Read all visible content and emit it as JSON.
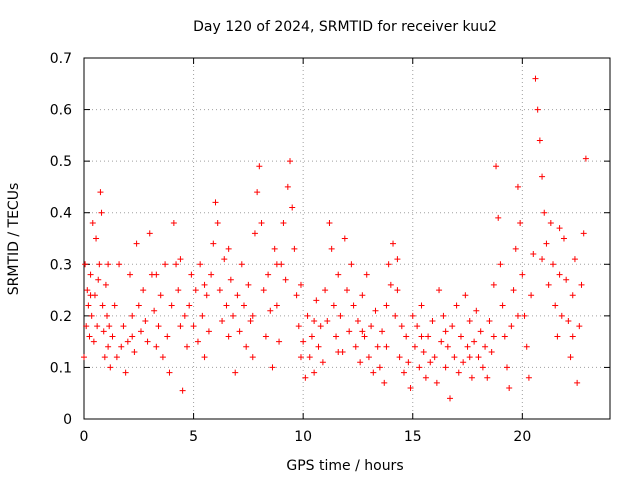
{
  "chart_data": {
    "type": "scatter",
    "title": "Day 120 of 2024, SRMTID for receiver kuu2",
    "xlabel": "GPS time / hours",
    "ylabel": "SRMTID / TECUs",
    "xlim": [
      0,
      24
    ],
    "ylim": [
      0,
      0.7
    ],
    "xticks": [
      0,
      5,
      10,
      15,
      20
    ],
    "xtick_labels": [
      "0",
      "5",
      "10",
      "15",
      "20"
    ],
    "yticks": [
      0,
      0.1,
      0.2,
      0.3,
      0.4,
      0.5,
      0.6,
      0.7
    ],
    "ytick_labels": [
      "0",
      "0.1",
      "0.2",
      "0.3",
      "0.4",
      "0.5",
      "0.6",
      "0.7"
    ],
    "grid": true,
    "marker": "+",
    "color": "#ff0000",
    "series": [
      {
        "name": "SRMTID",
        "points": [
          [
            0.0,
            0.12
          ],
          [
            0.05,
            0.3
          ],
          [
            0.1,
            0.18
          ],
          [
            0.15,
            0.25
          ],
          [
            0.2,
            0.22
          ],
          [
            0.25,
            0.16
          ],
          [
            0.3,
            0.28
          ],
          [
            0.35,
            0.2
          ],
          [
            0.4,
            0.38
          ],
          [
            0.45,
            0.15
          ],
          [
            0.5,
            0.24
          ],
          [
            0.55,
            0.35
          ],
          [
            0.6,
            0.18
          ],
          [
            0.65,
            0.27
          ],
          [
            0.7,
            0.3
          ],
          [
            0.75,
            0.44
          ],
          [
            0.8,
            0.4
          ],
          [
            0.85,
            0.22
          ],
          [
            0.9,
            0.17
          ],
          [
            0.95,
            0.12
          ],
          [
            1.0,
            0.26
          ],
          [
            1.05,
            0.2
          ],
          [
            1.1,
            0.14
          ],
          [
            1.15,
            0.18
          ],
          [
            1.2,
            0.1
          ],
          [
            1.3,
            0.16
          ],
          [
            1.4,
            0.22
          ],
          [
            1.5,
            0.12
          ],
          [
            1.6,
            0.3
          ],
          [
            1.7,
            0.14
          ],
          [
            1.8,
            0.18
          ],
          [
            1.9,
            0.09
          ],
          [
            2.0,
            0.15
          ],
          [
            2.1,
            0.28
          ],
          [
            2.2,
            0.2
          ],
          [
            2.3,
            0.13
          ],
          [
            2.4,
            0.34
          ],
          [
            2.5,
            0.22
          ],
          [
            2.6,
            0.17
          ],
          [
            2.7,
            0.25
          ],
          [
            2.8,
            0.19
          ],
          [
            2.9,
            0.15
          ],
          [
            3.0,
            0.36
          ],
          [
            3.1,
            0.28
          ],
          [
            3.2,
            0.21
          ],
          [
            3.3,
            0.14
          ],
          [
            3.4,
            0.18
          ],
          [
            3.5,
            0.24
          ],
          [
            3.6,
            0.12
          ],
          [
            3.7,
            0.3
          ],
          [
            3.8,
            0.16
          ],
          [
            3.9,
            0.09
          ],
          [
            4.0,
            0.22
          ],
          [
            4.1,
            0.38
          ],
          [
            4.2,
            0.3
          ],
          [
            4.3,
            0.25
          ],
          [
            4.4,
            0.18
          ],
          [
            4.5,
            0.055
          ],
          [
            4.6,
            0.2
          ],
          [
            4.7,
            0.14
          ],
          [
            4.8,
            0.22
          ],
          [
            4.9,
            0.28
          ],
          [
            5.0,
            0.18
          ],
          [
            5.1,
            0.25
          ],
          [
            5.2,
            0.15
          ],
          [
            5.3,
            0.3
          ],
          [
            5.4,
            0.2
          ],
          [
            5.5,
            0.12
          ],
          [
            5.6,
            0.24
          ],
          [
            5.7,
            0.17
          ],
          [
            5.8,
            0.28
          ],
          [
            5.9,
            0.34
          ],
          [
            6.0,
            0.42
          ],
          [
            6.1,
            0.38
          ],
          [
            6.2,
            0.25
          ],
          [
            6.3,
            0.19
          ],
          [
            6.4,
            0.31
          ],
          [
            6.5,
            0.22
          ],
          [
            6.6,
            0.16
          ],
          [
            6.7,
            0.27
          ],
          [
            6.8,
            0.2
          ],
          [
            6.9,
            0.09
          ],
          [
            7.0,
            0.24
          ],
          [
            7.1,
            0.17
          ],
          [
            7.2,
            0.3
          ],
          [
            7.3,
            0.22
          ],
          [
            7.4,
            0.14
          ],
          [
            7.5,
            0.26
          ],
          [
            7.6,
            0.19
          ],
          [
            7.7,
            0.12
          ],
          [
            7.8,
            0.36
          ],
          [
            7.9,
            0.44
          ],
          [
            8.0,
            0.49
          ],
          [
            8.1,
            0.38
          ],
          [
            8.2,
            0.25
          ],
          [
            8.3,
            0.16
          ],
          [
            8.4,
            0.28
          ],
          [
            8.5,
            0.21
          ],
          [
            8.6,
            0.1
          ],
          [
            8.7,
            0.33
          ],
          [
            8.8,
            0.22
          ],
          [
            8.9,
            0.15
          ],
          [
            9.0,
            0.3
          ],
          [
            9.1,
            0.38
          ],
          [
            9.2,
            0.27
          ],
          [
            9.3,
            0.45
          ],
          [
            9.4,
            0.5
          ],
          [
            9.5,
            0.41
          ],
          [
            9.6,
            0.33
          ],
          [
            9.7,
            0.24
          ],
          [
            9.8,
            0.18
          ],
          [
            9.9,
            0.12
          ],
          [
            10.0,
            0.15
          ],
          [
            10.1,
            0.08
          ],
          [
            10.2,
            0.2
          ],
          [
            10.3,
            0.12
          ],
          [
            10.4,
            0.16
          ],
          [
            10.5,
            0.09
          ],
          [
            10.6,
            0.23
          ],
          [
            10.7,
            0.14
          ],
          [
            10.8,
            0.18
          ],
          [
            10.9,
            0.11
          ],
          [
            11.0,
            0.25
          ],
          [
            11.1,
            0.19
          ],
          [
            11.2,
            0.38
          ],
          [
            11.3,
            0.33
          ],
          [
            11.4,
            0.22
          ],
          [
            11.5,
            0.16
          ],
          [
            11.6,
            0.28
          ],
          [
            11.7,
            0.2
          ],
          [
            11.8,
            0.13
          ],
          [
            11.9,
            0.35
          ],
          [
            12.0,
            0.25
          ],
          [
            12.1,
            0.17
          ],
          [
            12.2,
            0.3
          ],
          [
            12.3,
            0.22
          ],
          [
            12.4,
            0.14
          ],
          [
            12.5,
            0.19
          ],
          [
            12.6,
            0.11
          ],
          [
            12.7,
            0.24
          ],
          [
            12.8,
            0.16
          ],
          [
            12.9,
            0.28
          ],
          [
            13.0,
            0.12
          ],
          [
            13.1,
            0.18
          ],
          [
            13.2,
            0.09
          ],
          [
            13.3,
            0.21
          ],
          [
            13.4,
            0.14
          ],
          [
            13.5,
            0.1
          ],
          [
            13.6,
            0.17
          ],
          [
            13.7,
            0.07
          ],
          [
            13.8,
            0.22
          ],
          [
            13.9,
            0.3
          ],
          [
            14.0,
            0.26
          ],
          [
            14.1,
            0.34
          ],
          [
            14.2,
            0.2
          ],
          [
            14.3,
            0.31
          ],
          [
            14.4,
            0.12
          ],
          [
            14.5,
            0.18
          ],
          [
            14.6,
            0.09
          ],
          [
            14.7,
            0.16
          ],
          [
            14.8,
            0.11
          ],
          [
            14.9,
            0.06
          ],
          [
            15.0,
            0.2
          ],
          [
            15.1,
            0.14
          ],
          [
            15.2,
            0.18
          ],
          [
            15.3,
            0.1
          ],
          [
            15.4,
            0.22
          ],
          [
            15.5,
            0.13
          ],
          [
            15.6,
            0.08
          ],
          [
            15.7,
            0.16
          ],
          [
            15.8,
            0.11
          ],
          [
            15.9,
            0.19
          ],
          [
            16.0,
            0.12
          ],
          [
            16.1,
            0.07
          ],
          [
            16.2,
            0.25
          ],
          [
            16.3,
            0.15
          ],
          [
            16.4,
            0.2
          ],
          [
            16.5,
            0.1
          ],
          [
            16.6,
            0.14
          ],
          [
            16.7,
            0.04
          ],
          [
            16.8,
            0.18
          ],
          [
            16.9,
            0.12
          ],
          [
            17.0,
            0.22
          ],
          [
            17.1,
            0.09
          ],
          [
            17.2,
            0.16
          ],
          [
            17.3,
            0.11
          ],
          [
            17.4,
            0.24
          ],
          [
            17.5,
            0.14
          ],
          [
            17.6,
            0.19
          ],
          [
            17.7,
            0.08
          ],
          [
            17.8,
            0.15
          ],
          [
            17.9,
            0.21
          ],
          [
            18.0,
            0.12
          ],
          [
            18.1,
            0.17
          ],
          [
            18.2,
            0.1
          ],
          [
            18.3,
            0.14
          ],
          [
            18.4,
            0.08
          ],
          [
            18.5,
            0.19
          ],
          [
            18.6,
            0.13
          ],
          [
            18.7,
            0.26
          ],
          [
            18.8,
            0.49
          ],
          [
            18.9,
            0.39
          ],
          [
            19.0,
            0.3
          ],
          [
            19.1,
            0.22
          ],
          [
            19.2,
            0.16
          ],
          [
            19.3,
            0.1
          ],
          [
            19.4,
            0.06
          ],
          [
            19.5,
            0.18
          ],
          [
            19.6,
            0.25
          ],
          [
            19.7,
            0.33
          ],
          [
            19.8,
            0.45
          ],
          [
            19.9,
            0.38
          ],
          [
            20.0,
            0.28
          ],
          [
            20.1,
            0.2
          ],
          [
            20.2,
            0.14
          ],
          [
            20.3,
            0.08
          ],
          [
            20.4,
            0.24
          ],
          [
            20.5,
            0.32
          ],
          [
            20.6,
            0.66
          ],
          [
            20.7,
            0.6
          ],
          [
            20.8,
            0.54
          ],
          [
            20.9,
            0.47
          ],
          [
            21.0,
            0.4
          ],
          [
            21.1,
            0.34
          ],
          [
            21.2,
            0.26
          ],
          [
            21.3,
            0.38
          ],
          [
            21.4,
            0.3
          ],
          [
            21.5,
            0.22
          ],
          [
            21.6,
            0.16
          ],
          [
            21.7,
            0.28
          ],
          [
            21.8,
            0.2
          ],
          [
            21.9,
            0.35
          ],
          [
            22.0,
            0.27
          ],
          [
            22.1,
            0.19
          ],
          [
            22.2,
            0.12
          ],
          [
            22.3,
            0.24
          ],
          [
            22.4,
            0.31
          ],
          [
            22.5,
            0.07
          ],
          [
            22.6,
            0.18
          ],
          [
            22.7,
            0.26
          ],
          [
            22.8,
            0.36
          ],
          [
            22.9,
            0.505
          ],
          [
            0.3,
            0.24
          ],
          [
            1.1,
            0.3
          ],
          [
            2.2,
            0.16
          ],
          [
            3.3,
            0.28
          ],
          [
            4.4,
            0.31
          ],
          [
            5.5,
            0.26
          ],
          [
            6.6,
            0.33
          ],
          [
            7.7,
            0.2
          ],
          [
            8.8,
            0.3
          ],
          [
            9.9,
            0.26
          ],
          [
            10.5,
            0.19
          ],
          [
            11.6,
            0.13
          ],
          [
            12.7,
            0.17
          ],
          [
            13.8,
            0.14
          ],
          [
            14.3,
            0.25
          ],
          [
            15.4,
            0.16
          ],
          [
            16.5,
            0.17
          ],
          [
            17.6,
            0.12
          ],
          [
            18.7,
            0.16
          ],
          [
            19.8,
            0.2
          ],
          [
            20.9,
            0.31
          ],
          [
            21.7,
            0.37
          ],
          [
            22.3,
            0.16
          ]
        ]
      }
    ]
  }
}
